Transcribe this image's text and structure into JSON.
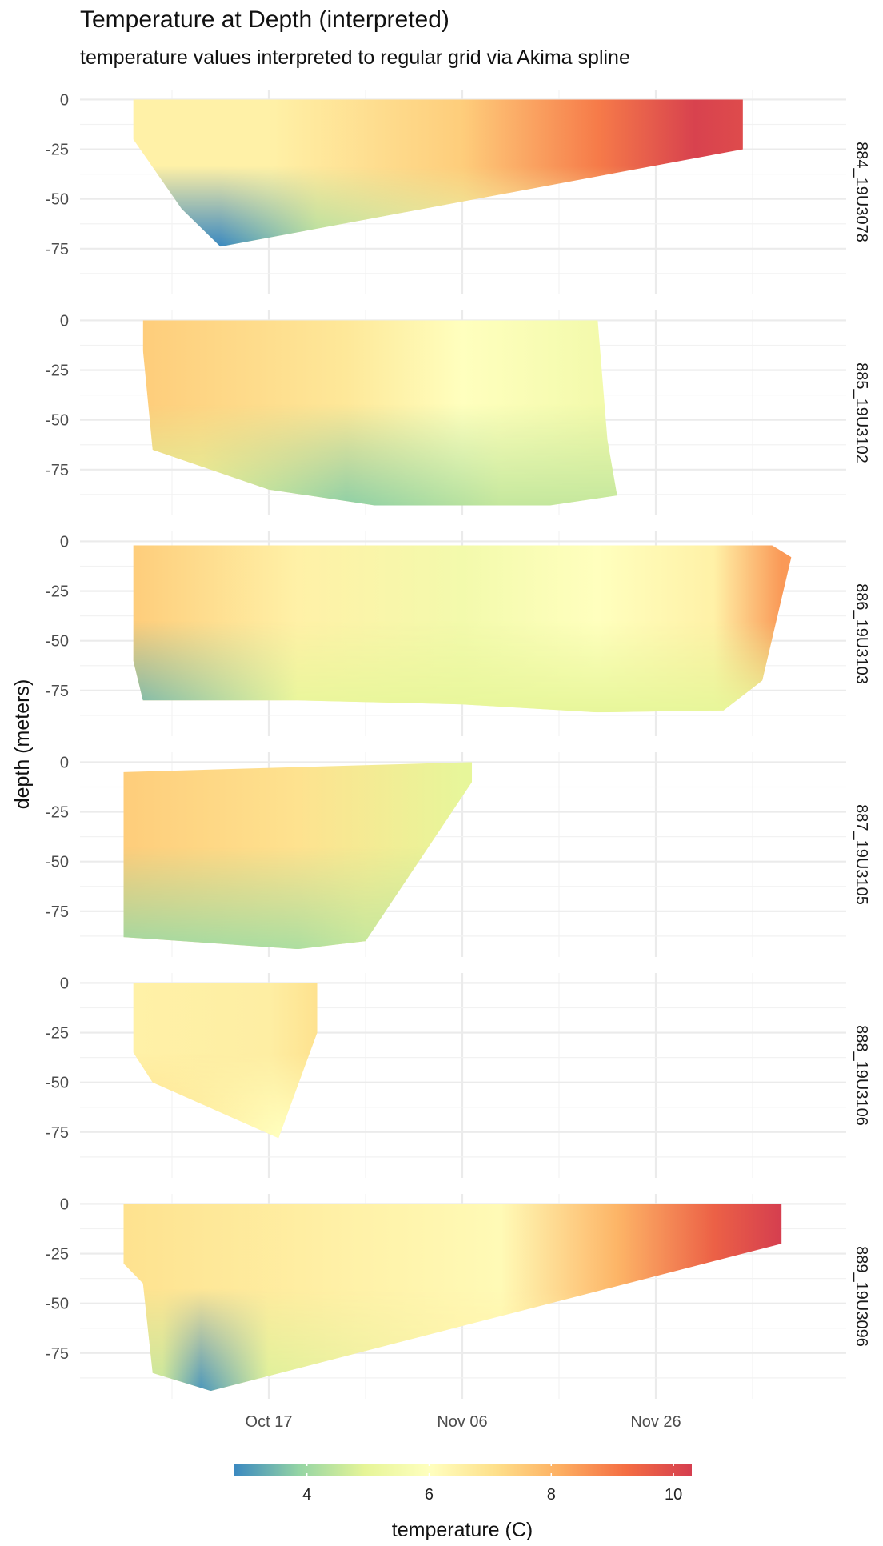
{
  "chart_data": {
    "type": "heatmap",
    "title": "Temperature at Depth (interpreted)",
    "subtitle": "temperature values interpreted to regular grid via Akima spline",
    "xlabel": "",
    "ylabel": "depth (meters)",
    "x_ticks": [
      "Oct 17",
      "Nov 06",
      "Nov 26"
    ],
    "y_ticks": [
      0,
      -25,
      -50,
      -75
    ],
    "ylim": [
      -95,
      0
    ],
    "grid": true,
    "colorbar": {
      "title": "temperature (C)",
      "ticks": [
        4,
        6,
        8,
        10
      ],
      "range": [
        2.8,
        10.3
      ],
      "palette": [
        "#3a88c0",
        "#94d4a4",
        "#e6f598",
        "#ffffbf",
        "#fee08b",
        "#fdae61",
        "#f46d43",
        "#d53e4f"
      ]
    },
    "legend_position": "bottom",
    "facets": [
      {
        "name": "884_19U3078",
        "x_start": "Oct 03",
        "x_end": "Dec 05",
        "shape": [
          [
            "Oct 03",
            0
          ],
          [
            "Dec 05",
            0
          ],
          [
            "Dec 05",
            -25
          ],
          [
            "Oct 12",
            -74
          ],
          [
            "Oct 08",
            -55
          ],
          [
            "Oct 03",
            -20
          ]
        ],
        "surface_temp": [
          [
            "Oct 03",
            6.5
          ],
          [
            "Oct 17",
            6.5
          ],
          [
            "Nov 06",
            7.5
          ],
          [
            "Nov 20",
            9.0
          ],
          [
            "Nov 30",
            10.2
          ],
          [
            "Dec 05",
            10.0
          ]
        ],
        "bottom_temp": [
          [
            "Oct 12",
            2.8
          ],
          [
            "Oct 22",
            4.2
          ],
          [
            "Nov 10",
            5.5
          ]
        ]
      },
      {
        "name": "885_19U3102",
        "x_start": "Oct 04",
        "x_end": "Nov 22",
        "shape": [
          [
            "Oct 04",
            0
          ],
          [
            "Nov 20",
            0
          ],
          [
            "Nov 21",
            -60
          ],
          [
            "Nov 22",
            -88
          ],
          [
            "Nov 15",
            -93
          ],
          [
            "Oct 28",
            -93
          ],
          [
            "Oct 17",
            -85
          ],
          [
            "Oct 05",
            -65
          ],
          [
            "Oct 04",
            -15
          ]
        ],
        "surface_temp": [
          [
            "Oct 04",
            7.5
          ],
          [
            "Oct 25",
            6.8
          ],
          [
            "Nov 06",
            6.0
          ],
          [
            "Nov 20",
            5.5
          ]
        ],
        "bottom_temp": [
          [
            "Oct 10",
            4.8
          ],
          [
            "Oct 25",
            3.8
          ],
          [
            "Nov 10",
            4.5
          ]
        ]
      },
      {
        "name": "886_19U3103",
        "x_start": "Oct 03",
        "x_end": "Dec 10",
        "shape": [
          [
            "Oct 03",
            -2
          ],
          [
            "Dec 08",
            -2
          ],
          [
            "Dec 10",
            -8
          ],
          [
            "Dec 07",
            -70
          ],
          [
            "Dec 03",
            -85
          ],
          [
            "Nov 20",
            -86
          ],
          [
            "Nov 06",
            -82
          ],
          [
            "Oct 20",
            -80
          ],
          [
            "Oct 04",
            -80
          ],
          [
            "Oct 03",
            -60
          ]
        ],
        "surface_temp": [
          [
            "Oct 03",
            7.5
          ],
          [
            "Oct 20",
            6.5
          ],
          [
            "Nov 06",
            5.5
          ],
          [
            "Nov 20",
            6.0
          ],
          [
            "Dec 02",
            6.5
          ],
          [
            "Dec 09",
            8.5
          ]
        ],
        "bottom_temp": [
          [
            "Oct 04",
            3.5
          ],
          [
            "Oct 20",
            5.0
          ],
          [
            "Nov 20",
            5.0
          ]
        ]
      },
      {
        "name": "887_19U3105",
        "x_start": "Oct 02",
        "x_end": "Nov 07",
        "shape": [
          [
            "Oct 02",
            -5
          ],
          [
            "Nov 07",
            0
          ],
          [
            "Nov 07",
            -10
          ],
          [
            "Oct 27",
            -90
          ],
          [
            "Oct 20",
            -94
          ],
          [
            "Oct 02",
            -88
          ]
        ],
        "surface_temp": [
          [
            "Oct 02",
            7.5
          ],
          [
            "Oct 20",
            7.0
          ],
          [
            "Nov 06",
            5.0
          ]
        ],
        "bottom_temp": [
          [
            "Oct 02",
            4.0
          ],
          [
            "Oct 20",
            4.2
          ],
          [
            "Oct 27",
            4.5
          ]
        ]
      },
      {
        "name": "888_19U3106",
        "x_start": "Oct 03",
        "x_end": "Oct 22",
        "shape": [
          [
            "Oct 03",
            0
          ],
          [
            "Oct 22",
            0
          ],
          [
            "Oct 22",
            -25
          ],
          [
            "Oct 18",
            -78
          ],
          [
            "Oct 05",
            -50
          ],
          [
            "Oct 03",
            -35
          ]
        ],
        "surface_temp": [
          [
            "Oct 03",
            6.5
          ],
          [
            "Oct 17",
            6.6
          ],
          [
            "Oct 22",
            7.0
          ]
        ],
        "bottom_temp": [
          [
            "Oct 05",
            7.0
          ],
          [
            "Oct 18",
            6.0
          ]
        ]
      },
      {
        "name": "889_19U3096",
        "x_start": "Oct 02",
        "x_end": "Dec 09",
        "shape": [
          [
            "Oct 02",
            0
          ],
          [
            "Dec 09",
            0
          ],
          [
            "Dec 09",
            -20
          ],
          [
            "Oct 11",
            -94
          ],
          [
            "Oct 05",
            -85
          ],
          [
            "Oct 04",
            -40
          ],
          [
            "Oct 02",
            -30
          ]
        ],
        "surface_temp": [
          [
            "Oct 02",
            7.0
          ],
          [
            "Oct 25",
            6.5
          ],
          [
            "Nov 10",
            6.2
          ],
          [
            "Nov 22",
            8.0
          ],
          [
            "Dec 02",
            9.5
          ],
          [
            "Dec 09",
            10.3
          ]
        ],
        "bottom_temp": [
          [
            "Oct 06",
            4.5
          ],
          [
            "Oct 10",
            3.0
          ],
          [
            "Oct 17",
            4.8
          ],
          [
            "Nov 06",
            6.5
          ]
        ]
      }
    ]
  }
}
